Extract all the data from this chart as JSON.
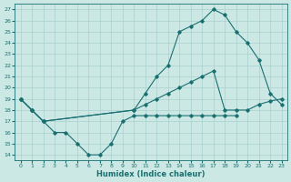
{
  "xlabel": "Humidex (Indice chaleur)",
  "bg_color": "#cce8e5",
  "line_color": "#1a7070",
  "grid_color": "#a8d0ce",
  "xlim": [
    -0.5,
    23.5
  ],
  "ylim": [
    13.5,
    27.5
  ],
  "xticks": [
    0,
    1,
    2,
    3,
    4,
    5,
    6,
    7,
    8,
    9,
    10,
    11,
    12,
    13,
    14,
    15,
    16,
    17,
    18,
    19,
    20,
    21,
    22,
    23
  ],
  "yticks": [
    14,
    15,
    16,
    17,
    18,
    19,
    20,
    21,
    22,
    23,
    24,
    25,
    26,
    27
  ],
  "curve1_x": [
    0,
    1,
    2,
    3,
    4,
    5,
    6,
    7,
    8,
    9,
    10,
    11,
    12,
    13,
    14,
    15,
    16,
    17,
    18,
    19
  ],
  "curve1_y": [
    19,
    18,
    17,
    16,
    16,
    15,
    14,
    14,
    15,
    17,
    17.5,
    17.5,
    17.5,
    17.5,
    17.5,
    17.5,
    17.5,
    17.5,
    17.5,
    17.5
  ],
  "curve2_x": [
    0,
    1,
    2,
    10,
    11,
    12,
    13,
    14,
    15,
    16,
    17,
    18,
    19,
    20,
    21,
    22,
    23
  ],
  "curve2_y": [
    19,
    18,
    17,
    18,
    19.5,
    21,
    22,
    25,
    25.5,
    26,
    27,
    26.5,
    25,
    24,
    22.5,
    19.5,
    18.5
  ],
  "curve3_x": [
    0,
    1,
    2,
    10,
    11,
    12,
    13,
    14,
    15,
    16,
    17,
    18,
    19,
    20,
    21,
    22,
    23
  ],
  "curve3_y": [
    19,
    18,
    17,
    18,
    18.5,
    19,
    19.5,
    20,
    20.5,
    21,
    21.5,
    18,
    18,
    18,
    18.5,
    18.8,
    19
  ]
}
